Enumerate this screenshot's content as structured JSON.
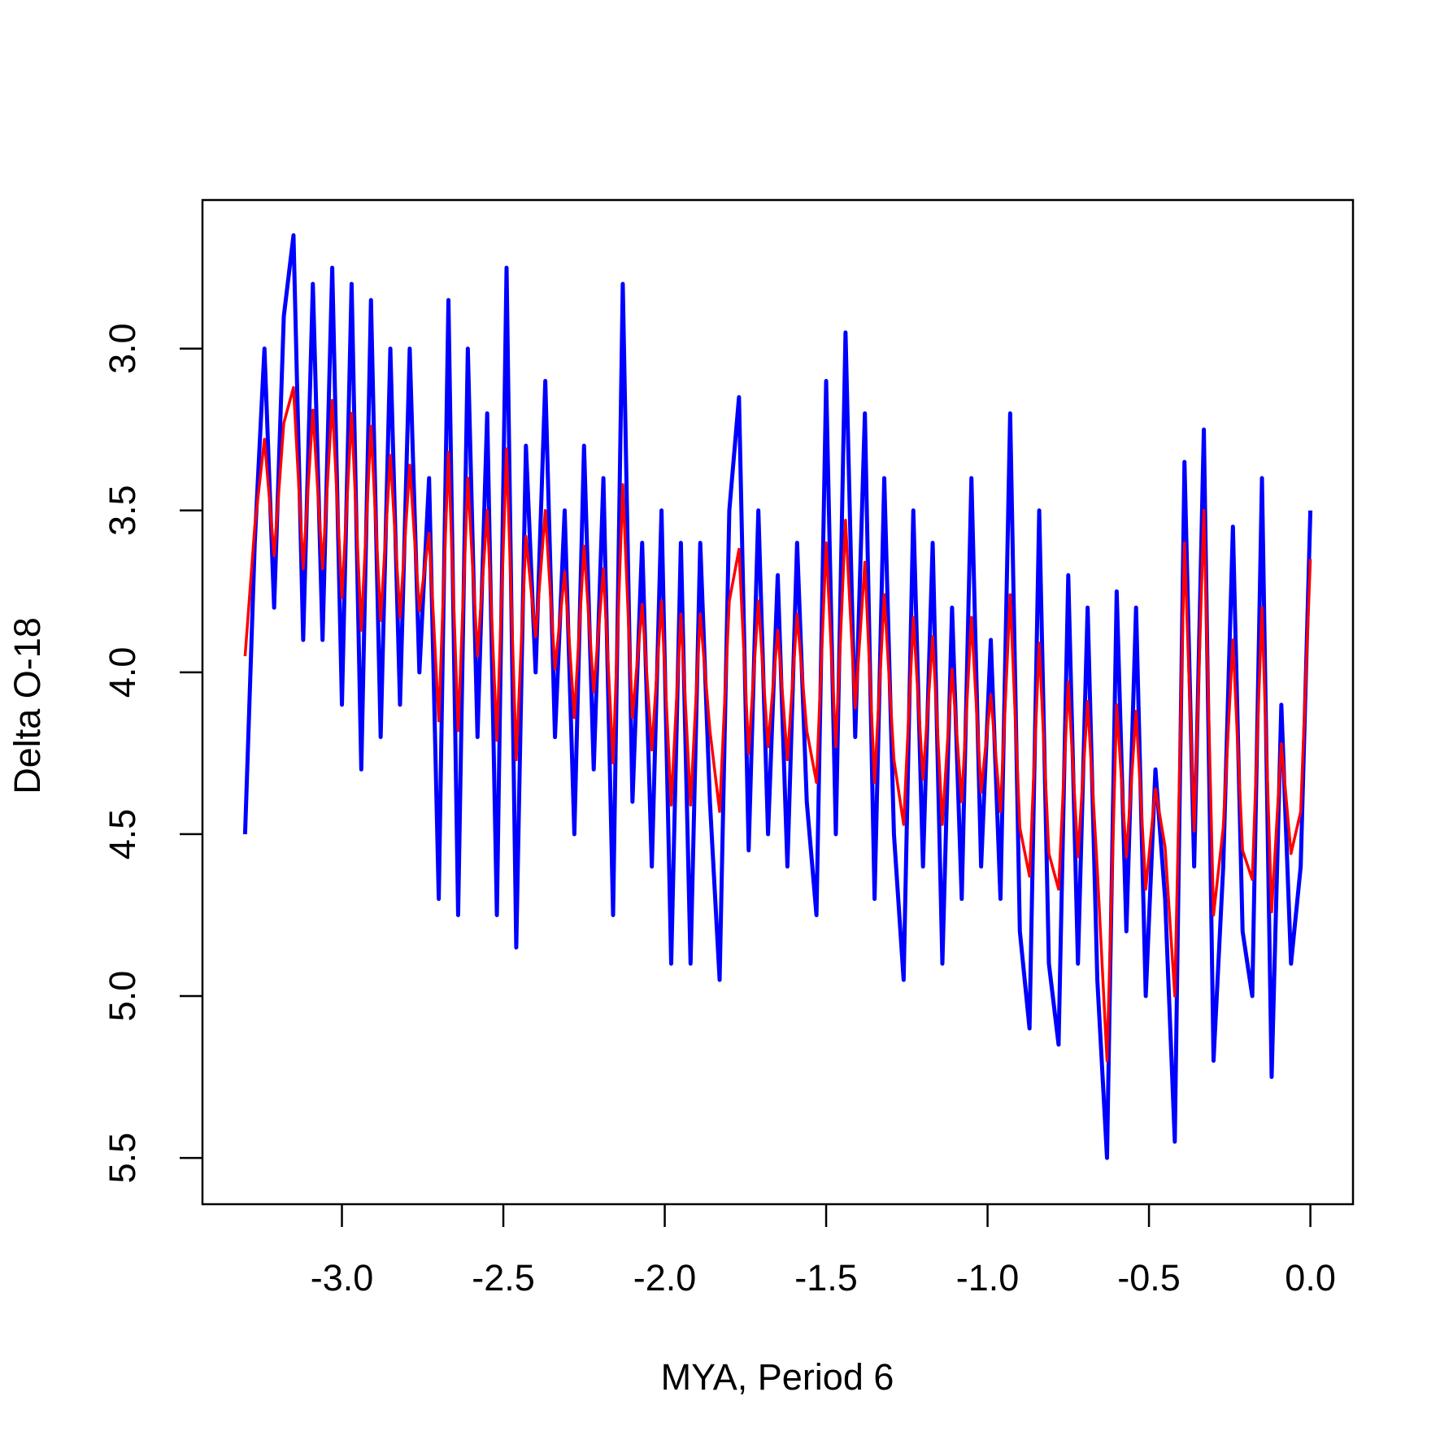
{
  "chart_data": {
    "type": "line",
    "xlabel": "MYA, Period 6",
    "ylabel": "Delta O-18",
    "x": [
      -3.3,
      -3.27,
      -3.24,
      -3.21,
      -3.18,
      -3.15,
      -3.12,
      -3.09,
      -3.06,
      -3.03,
      -3.0,
      -2.97,
      -2.94,
      -2.91,
      -2.88,
      -2.85,
      -2.82,
      -2.79,
      -2.76,
      -2.73,
      -2.7,
      -2.67,
      -2.64,
      -2.61,
      -2.58,
      -2.55,
      -2.52,
      -2.49,
      -2.46,
      -2.43,
      -2.4,
      -2.37,
      -2.34,
      -2.31,
      -2.28,
      -2.25,
      -2.22,
      -2.19,
      -2.16,
      -2.13,
      -2.1,
      -2.07,
      -2.04,
      -2.01,
      -1.98,
      -1.95,
      -1.92,
      -1.89,
      -1.86,
      -1.83,
      -1.8,
      -1.77,
      -1.74,
      -1.71,
      -1.68,
      -1.65,
      -1.62,
      -1.59,
      -1.56,
      -1.53,
      -1.5,
      -1.47,
      -1.44,
      -1.41,
      -1.38,
      -1.35,
      -1.32,
      -1.29,
      -1.26,
      -1.23,
      -1.2,
      -1.17,
      -1.14,
      -1.11,
      -1.08,
      -1.05,
      -1.02,
      -0.99,
      -0.96,
      -0.93,
      -0.9,
      -0.87,
      -0.84,
      -0.81,
      -0.78,
      -0.75,
      -0.72,
      -0.69,
      -0.66,
      -0.63,
      -0.6,
      -0.57,
      -0.54,
      -0.51,
      -0.48,
      -0.45,
      -0.42,
      -0.39,
      -0.36,
      -0.33,
      -0.3,
      -0.27,
      -0.24,
      -0.21,
      -0.18,
      -0.15,
      -0.12,
      -0.09,
      -0.06,
      -0.03,
      0.0
    ],
    "series": [
      {
        "color": "#0000ff",
        "values": [
          4.5,
          3.6,
          3.0,
          3.8,
          2.9,
          2.65,
          3.9,
          2.8,
          3.9,
          2.75,
          4.1,
          2.8,
          4.3,
          2.85,
          4.2,
          3.0,
          4.1,
          3.0,
          4.0,
          3.4,
          4.7,
          2.85,
          4.75,
          3.0,
          4.2,
          3.2,
          4.75,
          2.75,
          4.85,
          3.3,
          4.0,
          3.1,
          4.2,
          3.5,
          4.5,
          3.3,
          4.3,
          3.4,
          4.75,
          2.8,
          4.4,
          3.6,
          4.6,
          3.5,
          4.9,
          3.6,
          4.9,
          3.6,
          4.4,
          4.95,
          3.5,
          3.15,
          4.55,
          3.5,
          4.5,
          3.7,
          4.6,
          3.6,
          4.4,
          4.75,
          3.1,
          4.5,
          2.95,
          4.2,
          3.2,
          4.7,
          3.4,
          4.5,
          4.95,
          3.5,
          4.6,
          3.6,
          4.9,
          3.8,
          4.7,
          3.4,
          4.6,
          3.9,
          4.7,
          3.2,
          4.8,
          5.1,
          3.5,
          4.9,
          5.15,
          3.7,
          4.9,
          3.8,
          4.95,
          5.5,
          3.75,
          4.8,
          3.8,
          5.0,
          4.3,
          4.7,
          5.45,
          3.35,
          4.6,
          3.25,
          5.2,
          4.6,
          3.55,
          4.8,
          5.0,
          3.4,
          5.25,
          4.1,
          4.9,
          4.6,
          3.5
        ]
      },
      {
        "color": "#ff0000",
        "values": [
          3.95,
          3.55,
          3.28,
          3.64,
          3.23,
          3.12,
          3.68,
          3.19,
          3.68,
          3.16,
          3.77,
          3.2,
          3.87,
          3.24,
          3.84,
          3.33,
          3.83,
          3.36,
          3.81,
          3.57,
          4.15,
          3.32,
          4.18,
          3.4,
          3.95,
          3.5,
          4.21,
          3.31,
          4.27,
          3.58,
          3.89,
          3.5,
          3.99,
          3.69,
          4.14,
          3.61,
          4.06,
          3.68,
          4.28,
          3.42,
          4.14,
          3.79,
          4.24,
          3.78,
          4.41,
          3.82,
          4.41,
          3.82,
          4.18,
          4.43,
          3.78,
          3.62,
          4.25,
          3.78,
          4.23,
          3.87,
          4.27,
          3.82,
          4.18,
          4.34,
          3.6,
          4.23,
          3.53,
          4.11,
          3.66,
          4.34,
          3.76,
          4.27,
          4.47,
          3.83,
          4.33,
          3.89,
          4.47,
          3.99,
          4.4,
          3.83,
          4.37,
          4.07,
          4.43,
          3.76,
          4.48,
          4.63,
          3.91,
          4.56,
          4.67,
          4.03,
          4.57,
          4.09,
          4.61,
          5.2,
          4.1,
          4.57,
          4.12,
          4.67,
          4.36,
          4.54,
          5.0,
          3.6,
          4.49,
          3.5,
          4.75,
          4.48,
          3.9,
          4.55,
          4.64,
          3.8,
          4.74,
          4.22,
          4.56,
          4.43,
          3.65
        ]
      }
    ],
    "xlim": [
      -3.432,
      0.132
    ],
    "xticks": [
      {
        "value": -3,
        "label": "-3.0"
      },
      -2.5,
      {
        "value": -2,
        "label": "-2.0"
      },
      -1.5,
      {
        "value": -1,
        "label": "-1.0"
      },
      -0.5,
      {
        "value": 0,
        "label": "0.0"
      }
    ],
    "ylim": [
      5.643,
      2.541
    ],
    "yticks": [
      {
        "value": 3,
        "label": "3.0"
      },
      3.5,
      {
        "value": 4,
        "label": "4.0"
      },
      4.5,
      {
        "value": 5,
        "label": "5.0"
      },
      5.5
    ]
  }
}
